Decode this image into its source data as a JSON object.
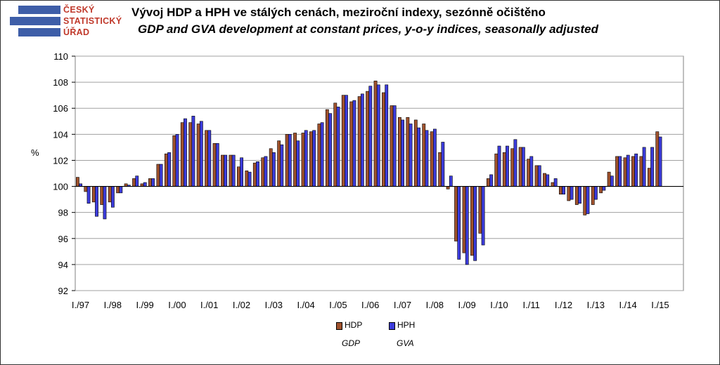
{
  "logo": {
    "line1": "ČESKÝ",
    "line2": "STATISTICKÝ",
    "line3": "ÚŘAD"
  },
  "title_cz": "Vývoj HDP a HPH ve stálých cenách, meziroční indexy, sezónně očištěno",
  "title_en": "GDP and GVA development at constant prices, y-o-y indices, seasonally adjusted",
  "colors": {
    "hdp": "#a0522d",
    "hph": "#3c3cdc",
    "grid": "#a0a0a0",
    "baseline": "#000000"
  },
  "chart_data": {
    "type": "bar",
    "ylabel": "%",
    "ylim": [
      92,
      110
    ],
    "yticks": [
      92,
      94,
      96,
      98,
      100,
      102,
      104,
      106,
      108,
      110
    ],
    "baseline": 100,
    "grid": true,
    "legend_position": "bottom",
    "x_tick_labels": [
      "I./97",
      "I./98",
      "I./99",
      "I./00",
      "I./01",
      "I./02",
      "I./03",
      "I./04",
      "I./05",
      "I./06",
      "I./07",
      "I./08",
      "I./09",
      "I./10",
      "I./11",
      "I./12",
      "I./13",
      "I./14",
      "I./15"
    ],
    "series": [
      {
        "name": "HDP",
        "subtitle": "GDP",
        "color": "#a0522d",
        "values": [
          100.7,
          99.6,
          98.8,
          98.6,
          98.8,
          99.5,
          100.2,
          100.6,
          100.2,
          100.6,
          101.7,
          102.5,
          103.9,
          104.9,
          104.9,
          104.8,
          104.3,
          103.3,
          102.4,
          102.4,
          101.5,
          101.2,
          101.8,
          102.2,
          102.9,
          103.5,
          104.0,
          104.1,
          104.1,
          104.2,
          104.8,
          105.9,
          106.4,
          107.0,
          106.5,
          106.9,
          107.3,
          108.1,
          107.2,
          106.2,
          105.3,
          105.3,
          105.1,
          104.8,
          104.2,
          102.6,
          99.8,
          95.8,
          94.9,
          94.7,
          96.4,
          100.6,
          102.5,
          102.6,
          102.9,
          103.0,
          102.1,
          101.6,
          101.0,
          100.3,
          99.4,
          98.9,
          98.6,
          97.8,
          98.6,
          99.5,
          101.1,
          102.3,
          102.2,
          102.3,
          102.3,
          101.4,
          104.2
        ]
      },
      {
        "name": "HPH",
        "subtitle": "GVA",
        "color": "#3c3cdc",
        "values": [
          100.2,
          98.7,
          97.7,
          97.5,
          98.4,
          99.5,
          100.1,
          100.8,
          100.3,
          100.6,
          101.7,
          102.6,
          104.0,
          105.2,
          105.4,
          105.0,
          104.3,
          103.3,
          102.4,
          102.4,
          102.2,
          101.1,
          101.9,
          102.3,
          102.6,
          103.2,
          104.0,
          103.5,
          104.3,
          104.3,
          104.9,
          105.6,
          106.1,
          107.0,
          106.6,
          107.1,
          107.7,
          107.8,
          107.8,
          106.2,
          105.1,
          104.8,
          104.5,
          104.3,
          104.4,
          103.4,
          100.8,
          94.4,
          94.0,
          94.3,
          95.5,
          100.9,
          103.1,
          103.1,
          103.6,
          103.0,
          102.3,
          101.6,
          100.9,
          100.6,
          99.4,
          99.0,
          98.7,
          97.9,
          99.0,
          99.7,
          100.8,
          102.3,
          102.4,
          102.5,
          103.0,
          103.0,
          103.8
        ]
      }
    ]
  }
}
